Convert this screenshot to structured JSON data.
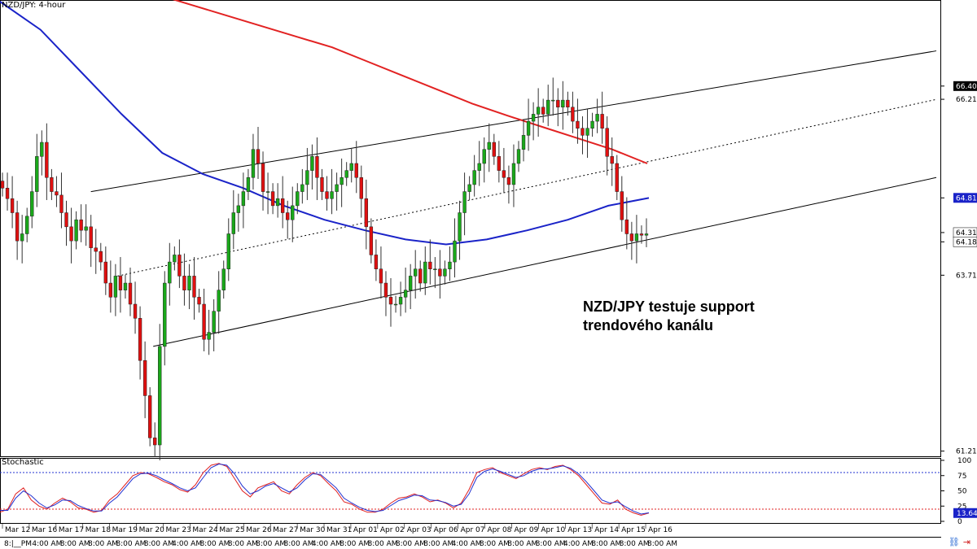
{
  "window": {
    "title": "NZD/JPY: 4-hour"
  },
  "annotation": {
    "line1": "NZD/JPY testuje support",
    "line2": "trendového kanálu"
  },
  "colors": {
    "bull": "#1aa81a",
    "bear": "#e01010",
    "sma_slow": "#e22222",
    "sma_fast": "#1a23c8",
    "stoch_k": "#e02020",
    "stoch_d": "#2030d0",
    "channel": "#000000",
    "price_tag": "#1a23c8"
  },
  "chart_data": [
    {
      "type": "candlestick",
      "title": "NZD/JPY: 4-hour",
      "y_ticks": [
        "66.400",
        "66.212",
        "64.811",
        "64.318",
        "64.186",
        "63.712",
        "61.212"
      ],
      "ylim": [
        61.15,
        67.6
      ],
      "price_tags": [
        {
          "label": "66.400",
          "value": 66.4,
          "style": "dark"
        },
        {
          "label": "64.811",
          "value": 64.811,
          "style": "blue"
        },
        {
          "label": "64.318",
          "value": 64.318,
          "style": "white"
        },
        {
          "label": "64.186",
          "value": 64.186,
          "style": "white"
        }
      ],
      "x_labels": [
        "Mar 12",
        "Mar 16",
        "Mar 17",
        "Mar 18",
        "Mar 19",
        "Mar 20",
        "Mar 23",
        "Mar 24",
        "Mar 25",
        "Mar 26",
        "Mar 27",
        "Mar 30",
        "Mar 31",
        "Apr 01",
        "Apr 02",
        "Apr 03",
        "Apr 06",
        "Apr 07",
        "Apr 08",
        "Apr 09",
        "Apr 10",
        "Apr 13",
        "Apr 14",
        "Apr 15",
        "Apr 16"
      ],
      "time_labels": [
        "8:|__PM",
        "4:00 AM",
        "8:00 AM",
        "8:00 AM",
        "8:00 AM",
        "8:00 AM",
        "4:00 AM",
        "8:00 AM",
        "8:00 AM",
        "8:00 AM",
        "8:00 AM",
        "4:00 AM",
        "8:00 AM",
        "8:00 AM",
        "8:00 AM",
        "8:00 AM",
        "4:00 AM",
        "8:00 AM",
        "8:00 AM",
        "8:00 AM",
        "4:00 AM",
        "8:00 AM",
        "8:00 AM",
        "8:00 AM"
      ],
      "closes": [
        64.95,
        64.8,
        64.6,
        64.2,
        64.3,
        64.55,
        64.9,
        65.4,
        65.6,
        65.1,
        64.9,
        64.85,
        64.6,
        64.4,
        64.2,
        64.5,
        64.35,
        64.4,
        64.1,
        64.05,
        63.9,
        63.6,
        63.4,
        63.7,
        63.5,
        63.6,
        63.3,
        63.1,
        62.5,
        62.0,
        61.4,
        61.3,
        62.7,
        63.6,
        63.9,
        64.0,
        63.7,
        63.5,
        63.7,
        63.4,
        63.3,
        62.8,
        62.9,
        63.2,
        63.5,
        63.8,
        64.3,
        64.6,
        64.7,
        64.9,
        65.1,
        65.5,
        65.3,
        64.9,
        64.9,
        64.7,
        64.8,
        64.6,
        64.5,
        64.7,
        64.9,
        65.0,
        65.2,
        65.4,
        65.1,
        64.9,
        64.8,
        64.9,
        65.0,
        65.1,
        65.2,
        65.3,
        65.1,
        64.8,
        64.4,
        64.0,
        63.8,
        63.6,
        63.4,
        63.3,
        63.3,
        63.4,
        63.5,
        63.7,
        63.8,
        63.6,
        63.9,
        63.8,
        63.8,
        63.7,
        63.8,
        63.9,
        64.2,
        64.6,
        64.9,
        65.0,
        65.2,
        65.3,
        65.5,
        65.6,
        65.4,
        65.2,
        65.1,
        65.0,
        65.3,
        65.5,
        65.7,
        65.9,
        66.0,
        66.1,
        66.0,
        66.2,
        66.2,
        66.1,
        66.2,
        66.1,
        65.9,
        65.8,
        65.7,
        65.8,
        65.9,
        66.0,
        65.8,
        65.4,
        65.3,
        64.9,
        64.5,
        64.3,
        64.2,
        64.3,
        64.28,
        64.3
      ],
      "series": [
        {
          "name": "",
          "role": "slow moving average",
          "values": [
            67.9,
            67.7,
            67.55,
            67.4,
            67.25,
            67.1,
            66.95,
            66.75,
            66.55,
            66.35,
            66.15,
            65.98,
            65.82,
            65.66,
            65.5,
            65.3
          ]
        },
        {
          "name": "",
          "role": "fast moving average",
          "values": [
            67.6,
            67.2,
            66.6,
            66.0,
            65.45,
            65.15,
            64.95,
            64.7,
            64.5,
            64.35,
            64.22,
            64.15,
            64.22,
            64.35,
            64.5,
            64.7,
            64.81
          ]
        }
      ],
      "channel_lines": [
        {
          "style": "solid",
          "from": [
            0.05,
            64.9
          ],
          "to": [
            1.0,
            66.9
          ]
        },
        {
          "style": "dotted",
          "from": [
            0.08,
            63.7
          ],
          "to": [
            1.0,
            66.21
          ]
        },
        {
          "style": "solid",
          "from": [
            0.12,
            62.7
          ],
          "to": [
            1.0,
            65.1
          ]
        }
      ]
    },
    {
      "type": "line",
      "title": "Stochastic",
      "ylim": [
        0,
        100
      ],
      "y_ticks": [
        "100",
        "75",
        "50",
        "25",
        "0"
      ],
      "levels": [
        80,
        20
      ],
      "value_tag": "13.64",
      "series": [
        {
          "name": "",
          "values": [
            15,
            20,
            45,
            55,
            35,
            25,
            20,
            30,
            38,
            32,
            22,
            20,
            15,
            18,
            35,
            45,
            60,
            75,
            80,
            78,
            72,
            65,
            60,
            52,
            48,
            60,
            80,
            92,
            95,
            90,
            70,
            50,
            40,
            55,
            60,
            65,
            50,
            45,
            60,
            72,
            80,
            75,
            62,
            50,
            32,
            28,
            20,
            15,
            15,
            20,
            30,
            38,
            40,
            45,
            40,
            32,
            35,
            30,
            22,
            30,
            52,
            80,
            85,
            88,
            80,
            75,
            70,
            78,
            85,
            88,
            85,
            90,
            92,
            85,
            75,
            60,
            45,
            30,
            28,
            35,
            20,
            14,
            10,
            13.64
          ]
        },
        {
          "name": "",
          "values": [
            18,
            18,
            38,
            50,
            42,
            30,
            22,
            27,
            35,
            34,
            26,
            21,
            17,
            17,
            30,
            40,
            55,
            70,
            78,
            79,
            75,
            68,
            62,
            55,
            50,
            55,
            72,
            88,
            94,
            92,
            78,
            58,
            45,
            50,
            58,
            62,
            55,
            48,
            55,
            68,
            78,
            77,
            66,
            55,
            38,
            30,
            23,
            18,
            16,
            18,
            26,
            34,
            38,
            43,
            42,
            35,
            34,
            31,
            25,
            28,
            45,
            72,
            82,
            86,
            82,
            77,
            72,
            75,
            82,
            86,
            86,
            88,
            91,
            87,
            78,
            65,
            50,
            35,
            30,
            32,
            24,
            17,
            12,
            14
          ]
        }
      ]
    }
  ]
}
